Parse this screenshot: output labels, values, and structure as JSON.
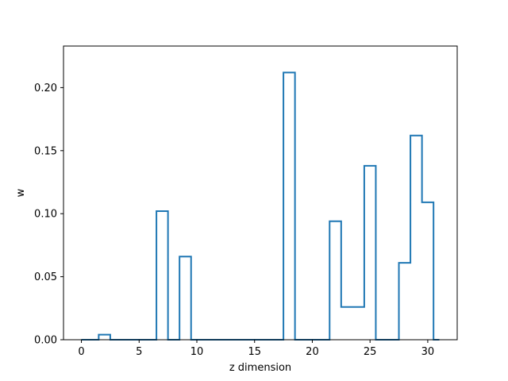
{
  "chart_data": {
    "type": "step",
    "title": "",
    "xlabel": "z dimension",
    "ylabel": "w",
    "xlim": [
      -1.55,
      32.55
    ],
    "ylim": [
      0,
      0.233
    ],
    "x_ticks": [
      0,
      5,
      10,
      15,
      20,
      25,
      30
    ],
    "y_ticks": [
      0.0,
      0.05,
      0.1,
      0.15,
      0.2
    ],
    "x_tick_labels": [
      "0",
      "5",
      "10",
      "15",
      "20",
      "25",
      "30"
    ],
    "y_tick_labels": [
      "0.00",
      "0.05",
      "0.10",
      "0.15",
      "0.20"
    ],
    "grid": false,
    "line_color": "#1f77b4",
    "bin_edges": [
      0,
      1.5,
      2.5,
      6.5,
      7.5,
      8.5,
      9.5,
      17.5,
      18.5,
      21.5,
      22.5,
      23.5,
      24.5,
      25.5,
      27.5,
      28.5,
      29.5,
      30.5,
      31
    ],
    "values": [
      0,
      0.004,
      0,
      0.102,
      0,
      0.066,
      0,
      0.212,
      0,
      0.094,
      0.026,
      0.026,
      0.138,
      0,
      0.061,
      0.162,
      0.109,
      0
    ]
  }
}
